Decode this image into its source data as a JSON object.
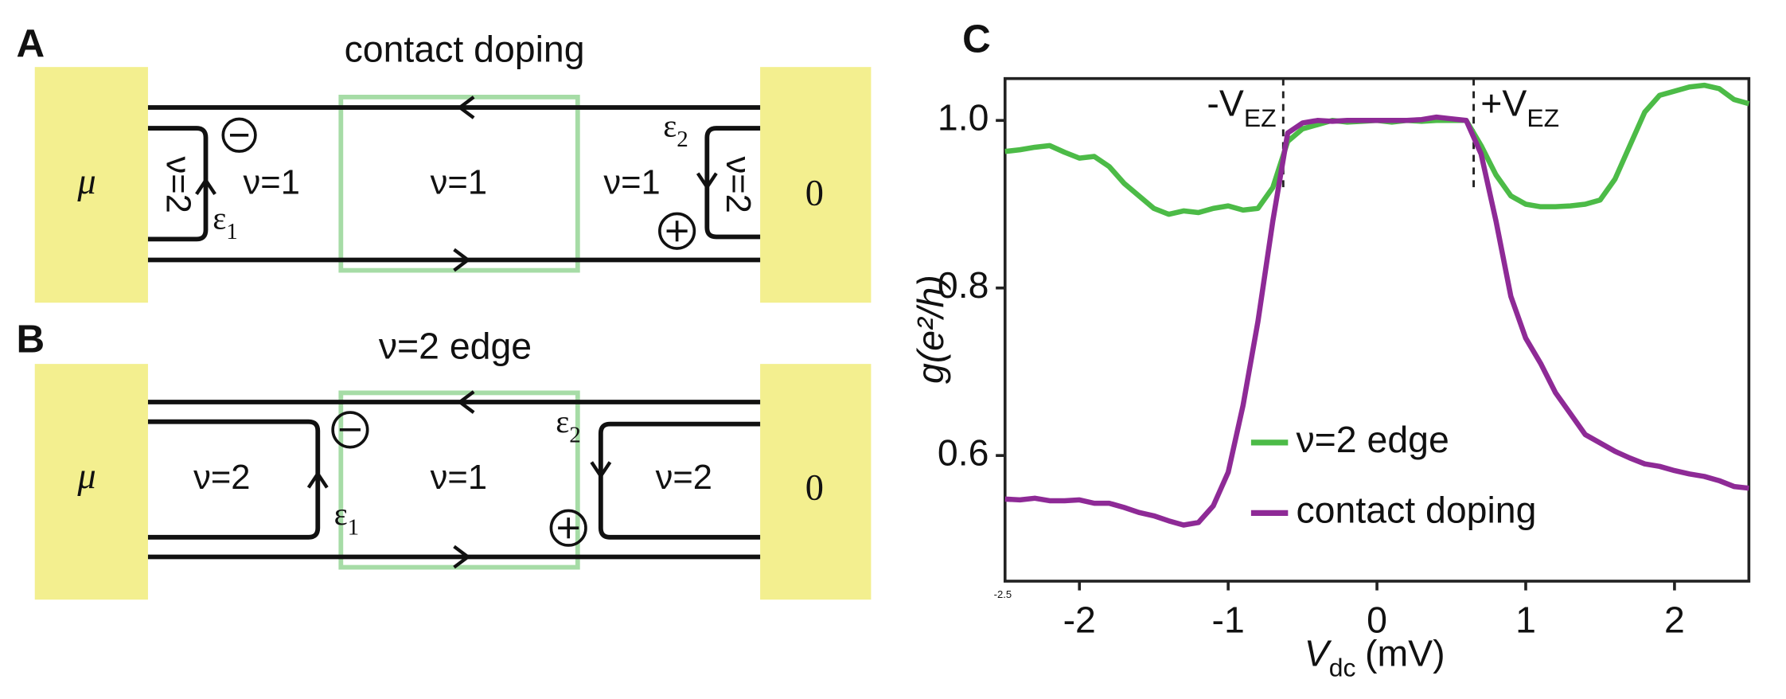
{
  "panels": {
    "a": {
      "letter": "A",
      "title": "contact doping",
      "left_contact": "μ",
      "right_contact": "0",
      "regions": [
        "ν=2",
        "ν=1",
        "ν=1",
        "ν=1",
        "ν=2"
      ],
      "e1": "ε",
      "e1_sub": "1",
      "e2": "ε",
      "e2_sub": "2"
    },
    "b": {
      "letter": "B",
      "title": "ν=2 edge",
      "left_contact": "μ",
      "right_contact": "0",
      "regions": [
        "ν=2",
        "ν=1",
        "ν=2"
      ],
      "e1": "ε",
      "e1_sub": "1",
      "e2": "ε",
      "e2_sub": "2"
    }
  },
  "chart_data": {
    "type": "line",
    "panel_label": "C",
    "x_label": {
      "text": "V",
      "sub": "dc",
      "unit": "(mV)"
    },
    "y_label": "g(e²/h)",
    "xlim": [
      -2.5,
      2.5
    ],
    "xticks": [
      -2.5,
      -2,
      -1,
      0,
      1,
      2
    ],
    "ylim": [
      0.45,
      1.05
    ],
    "yticks": [
      0.6,
      0.8,
      {
        "value": 1.0,
        "label": "1.0"
      }
    ],
    "annotations": [
      {
        "value": -0.63,
        "label": "-V",
        "sub": "EZ"
      },
      {
        "value": 0.65,
        "label": "+V",
        "sub": "EZ"
      }
    ],
    "x": [
      -2.5,
      -2.4,
      -2.3,
      -2.2,
      -2.1,
      -2.0,
      -1.9,
      -1.8,
      -1.7,
      -1.6,
      -1.5,
      -1.4,
      -1.3,
      -1.2,
      -1.1,
      -1.0,
      -0.9,
      -0.8,
      -0.7,
      -0.6,
      -0.5,
      -0.4,
      -0.3,
      -0.2,
      -0.1,
      0.0,
      0.1,
      0.2,
      0.3,
      0.4,
      0.5,
      0.6,
      0.7,
      0.8,
      0.9,
      1.0,
      1.1,
      1.2,
      1.3,
      1.4,
      1.5,
      1.6,
      1.7,
      1.8,
      1.9,
      2.0,
      2.1,
      2.2,
      2.3,
      2.4,
      2.5
    ],
    "series": [
      {
        "name": "ν=2 edge",
        "color": "#4cbb47",
        "values": [
          0.963,
          0.965,
          0.968,
          0.97,
          0.962,
          0.955,
          0.957,
          0.945,
          0.925,
          0.91,
          0.895,
          0.888,
          0.892,
          0.89,
          0.895,
          0.898,
          0.893,
          0.895,
          0.92,
          0.975,
          0.99,
          0.995,
          1.0,
          0.998,
          0.999,
          1.0,
          0.998,
          1.0,
          0.999,
          1.0,
          1.0,
          1.0,
          0.97,
          0.935,
          0.91,
          0.9,
          0.897,
          0.897,
          0.898,
          0.9,
          0.905,
          0.93,
          0.97,
          1.01,
          1.03,
          1.035,
          1.04,
          1.042,
          1.038,
          1.025,
          1.02
        ]
      },
      {
        "name": "contact doping",
        "color": "#8e2a96",
        "values": [
          0.548,
          0.547,
          0.549,
          0.546,
          0.546,
          0.547,
          0.543,
          0.543,
          0.538,
          0.532,
          0.528,
          0.522,
          0.517,
          0.52,
          0.54,
          0.58,
          0.66,
          0.76,
          0.88,
          0.985,
          0.997,
          1.0,
          0.999,
          1.0,
          1.0,
          1.0,
          1.0,
          1.0,
          1.001,
          1.004,
          1.002,
          1.0,
          0.96,
          0.88,
          0.79,
          0.74,
          0.71,
          0.675,
          0.65,
          0.625,
          0.615,
          0.605,
          0.597,
          0.59,
          0.587,
          0.582,
          0.578,
          0.575,
          0.57,
          0.563,
          0.561
        ]
      }
    ]
  }
}
